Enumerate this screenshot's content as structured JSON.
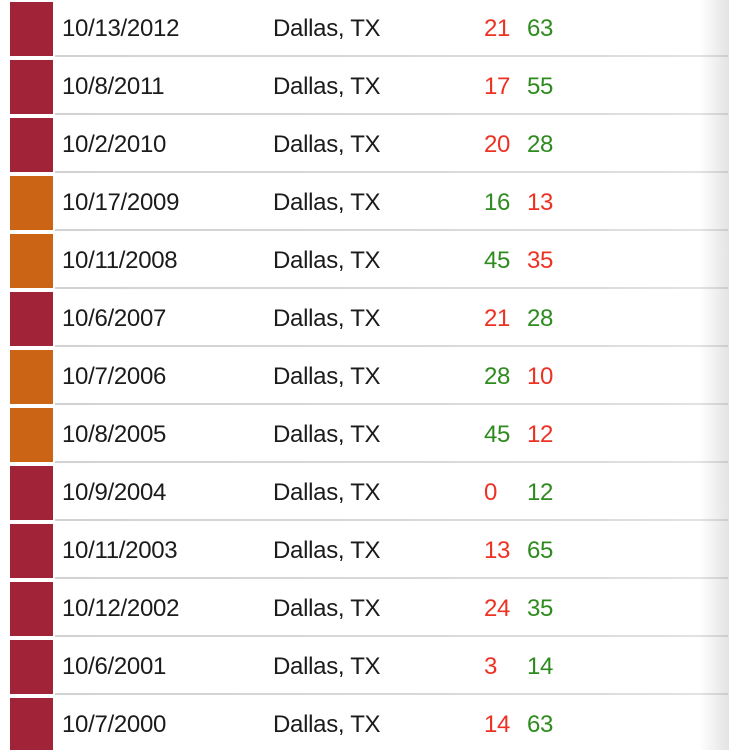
{
  "table": {
    "colors": {
      "crimson": "#a12338",
      "orange": "#cc6415",
      "loss_red": "#ed3224",
      "win_green": "#2e8b1e",
      "text": "#1b1b1b",
      "separator": "#dadada"
    },
    "rows": [
      {
        "date": "10/13/2012",
        "location": "Dallas, TX",
        "score_left": "21",
        "score_left_result": "loss",
        "score_right": "63",
        "score_right_result": "win",
        "marker_color": "crimson"
      },
      {
        "date": "10/8/2011",
        "location": "Dallas, TX",
        "score_left": "17",
        "score_left_result": "loss",
        "score_right": "55",
        "score_right_result": "win",
        "marker_color": "crimson"
      },
      {
        "date": "10/2/2010",
        "location": "Dallas, TX",
        "score_left": "20",
        "score_left_result": "loss",
        "score_right": "28",
        "score_right_result": "win",
        "marker_color": "crimson"
      },
      {
        "date": "10/17/2009",
        "location": "Dallas, TX",
        "score_left": "16",
        "score_left_result": "win",
        "score_right": "13",
        "score_right_result": "loss",
        "marker_color": "orange"
      },
      {
        "date": "10/11/2008",
        "location": "Dallas, TX",
        "score_left": "45",
        "score_left_result": "win",
        "score_right": "35",
        "score_right_result": "loss",
        "marker_color": "orange"
      },
      {
        "date": "10/6/2007",
        "location": "Dallas, TX",
        "score_left": "21",
        "score_left_result": "loss",
        "score_right": "28",
        "score_right_result": "win",
        "marker_color": "crimson"
      },
      {
        "date": "10/7/2006",
        "location": "Dallas, TX",
        "score_left": "28",
        "score_left_result": "win",
        "score_right": "10",
        "score_right_result": "loss",
        "marker_color": "orange"
      },
      {
        "date": "10/8/2005",
        "location": "Dallas, TX",
        "score_left": "45",
        "score_left_result": "win",
        "score_right": "12",
        "score_right_result": "loss",
        "marker_color": "orange"
      },
      {
        "date": "10/9/2004",
        "location": "Dallas, TX",
        "score_left": "0",
        "score_left_result": "loss",
        "score_right": "12",
        "score_right_result": "win",
        "marker_color": "crimson"
      },
      {
        "date": "10/11/2003",
        "location": "Dallas, TX",
        "score_left": "13",
        "score_left_result": "loss",
        "score_right": "65",
        "score_right_result": "win",
        "marker_color": "crimson"
      },
      {
        "date": "10/12/2002",
        "location": "Dallas, TX",
        "score_left": "24",
        "score_left_result": "loss",
        "score_right": "35",
        "score_right_result": "win",
        "marker_color": "crimson"
      },
      {
        "date": "10/6/2001",
        "location": "Dallas, TX",
        "score_left": "3",
        "score_left_result": "loss",
        "score_right": "14",
        "score_right_result": "win",
        "marker_color": "crimson"
      },
      {
        "date": "10/7/2000",
        "location": "Dallas, TX",
        "score_left": "14",
        "score_left_result": "loss",
        "score_right": "63",
        "score_right_result": "win",
        "marker_color": "crimson"
      }
    ]
  }
}
